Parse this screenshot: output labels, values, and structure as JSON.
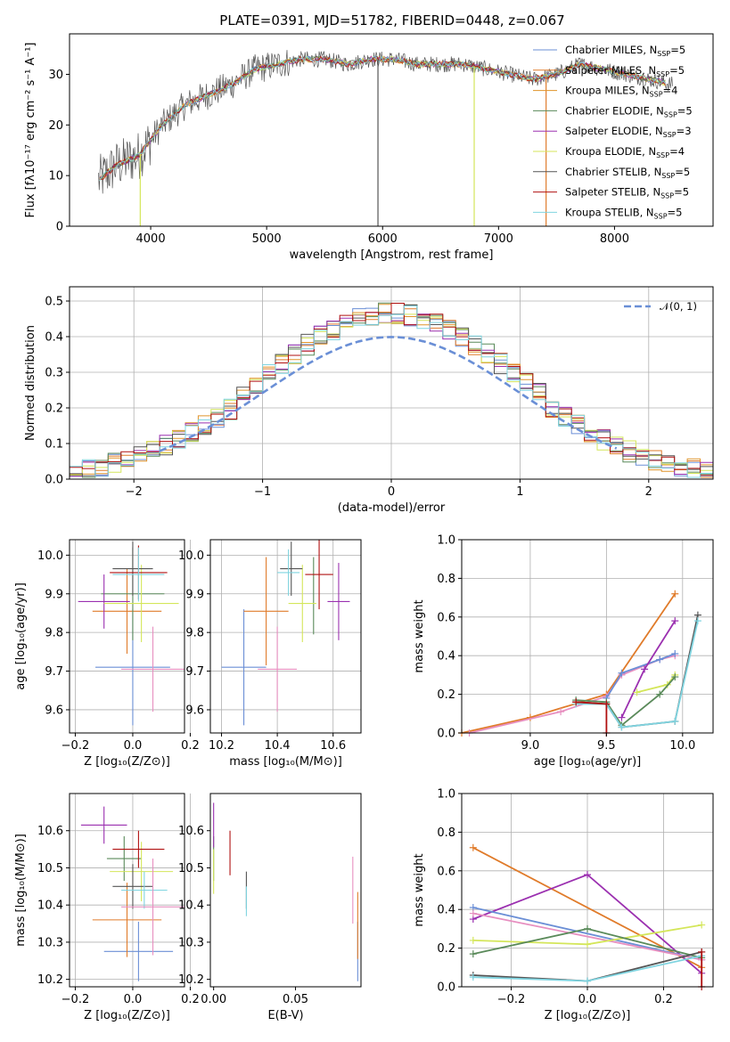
{
  "title": "PLATE=0391, MJD=51782, FIBERID=0448, z=0.067",
  "chart_data": [
    {
      "panel": "spectrum",
      "type": "line",
      "xlabel": "wavelength [Angstrom, rest frame]",
      "ylabel": "Flux [fλ10⁻¹⁷ erg cm⁻² s⁻¹ A⁻¹]",
      "xlim": [
        3300,
        8850
      ],
      "ylim": [
        0,
        38
      ],
      "xticks": [
        "4000",
        "5000",
        "6000",
        "7000",
        "8000"
      ],
      "yticks": [
        "0",
        "10",
        "20",
        "30"
      ],
      "legend_position": "top-right",
      "series": [
        {
          "name": "Chabrier MILES, N",
          "sub": "SSP",
          "tail": "=5",
          "color": "#6b8fd6"
        },
        {
          "name": "Salpeter MILES, N",
          "sub": "SSP",
          "tail": "=5",
          "color": "#e07b2a"
        },
        {
          "name": "Kroupa MILES, N",
          "sub": "SSP",
          "tail": "=4",
          "color": "#e0932a"
        },
        {
          "name": "Chabrier ELODIE, N",
          "sub": "SSP",
          "tail": "=5",
          "color": "#5a8a5a"
        },
        {
          "name": "Salpeter ELODIE, N",
          "sub": "SSP",
          "tail": "=3",
          "color": "#9b30b0"
        },
        {
          "name": "Kroupa ELODIE, N",
          "sub": "SSP",
          "tail": "=4",
          "color": "#d4e65a"
        },
        {
          "name": "Chabrier STELIB, N",
          "sub": "SSP",
          "tail": "=5",
          "color": "#555555"
        },
        {
          "name": "Salpeter STELIB, N",
          "sub": "SSP",
          "tail": "=5",
          "color": "#b01010"
        },
        {
          "name": "Kroupa STELIB, N",
          "sub": "SSP",
          "tail": "=5",
          "color": "#7fd4e0"
        }
      ],
      "continuum": {
        "x": [
          3550,
          3700,
          3900,
          4000,
          4100,
          4300,
          4500,
          4700,
          4900,
          5100,
          5300,
          5500,
          5700,
          5900,
          6100,
          6300,
          6500,
          6700,
          6900,
          7100,
          7300,
          7500,
          7700,
          7900,
          8100,
          8300,
          8500
        ],
        "y": [
          9,
          12,
          14,
          17,
          20,
          24,
          26,
          28,
          31,
          32,
          33,
          33,
          32,
          33,
          33,
          32,
          32,
          32,
          31,
          30,
          29,
          30,
          32,
          31,
          30,
          29,
          28
        ]
      }
    },
    {
      "panel": "residual_histogram",
      "type": "line",
      "xlabel": "(data-model)/error",
      "ylabel": "Normed distribution",
      "xlim": [
        -2.5,
        2.5
      ],
      "ylim": [
        0,
        0.54
      ],
      "xticks": [
        "−2",
        "−1",
        "0",
        "1",
        "2"
      ],
      "yticks": [
        "0.0",
        "0.1",
        "0.2",
        "0.3",
        "0.4",
        "0.5"
      ],
      "grid": true,
      "legend": "𝒩(0, 1)",
      "legend_position": "top-right",
      "gauss_color": "#6a8fd6"
    },
    {
      "panel": "age_vs_Z",
      "type": "scatter",
      "xlabel": "Z [log₁₀(Z/Z⊙)]",
      "ylabel": "age  [log₁₀(age/yr)]",
      "xlim": [
        -0.22,
        0.18
      ],
      "ylim": [
        9.54,
        10.04
      ],
      "xticks": [
        "−0.2",
        "0.0",
        "0.2"
      ],
      "yticks": [
        "9.6",
        "9.7",
        "9.8",
        "9.9",
        "10.0"
      ],
      "grid": true,
      "points": [
        {
          "x": 0.0,
          "xerr": 0.13,
          "y": 9.71,
          "yerr": 0.15,
          "color": "#6b8fd6"
        },
        {
          "x": -0.02,
          "xerr": 0.12,
          "y": 9.855,
          "yerr": 0.11,
          "color": "#e07b2a"
        },
        {
          "x": 0.0,
          "xerr": 0.11,
          "y": 9.9,
          "yerr": 0.12,
          "color": "#5a8a5a"
        },
        {
          "x": -0.1,
          "xerr": 0.09,
          "y": 9.88,
          "yerr": 0.07,
          "color": "#9b30b0"
        },
        {
          "x": 0.03,
          "xerr": 0.13,
          "y": 9.875,
          "yerr": 0.1,
          "color": "#d4e65a"
        },
        {
          "x": 0.0,
          "xerr": 0.07,
          "y": 9.965,
          "yerr": 0.07,
          "color": "#555555"
        },
        {
          "x": 0.02,
          "xerr": 0.1,
          "y": 9.955,
          "yerr": 0.07,
          "color": "#b01010"
        },
        {
          "x": 0.02,
          "xerr": 0.09,
          "y": 9.95,
          "yerr": 0.07,
          "color": "#7fd4e0"
        },
        {
          "x": 0.07,
          "xerr": 0.11,
          "y": 9.705,
          "yerr": 0.11,
          "color": "#e78fc0"
        }
      ]
    },
    {
      "panel": "age_vs_mass",
      "type": "scatter",
      "xlabel": "mass [log₁₀(M/M⊙)]",
      "xlim": [
        10.16,
        10.7
      ],
      "ylim": [
        9.54,
        10.04
      ],
      "xticks": [
        "10.2",
        "10.4",
        "10.6"
      ],
      "yticks": [
        "9.6",
        "9.7",
        "9.8",
        "9.9",
        "10.0"
      ],
      "grid": true,
      "points": [
        {
          "x": 10.28,
          "xerr": 0.08,
          "y": 9.71,
          "yerr": 0.15,
          "color": "#6b8fd6"
        },
        {
          "x": 10.36,
          "xerr": 0.08,
          "y": 9.855,
          "yerr": 0.14,
          "color": "#e07b2a"
        },
        {
          "x": 10.53,
          "xerr": 0.0,
          "y": 9.895,
          "yerr": 0.1,
          "color": "#5a8a5a"
        },
        {
          "x": 10.62,
          "xerr": 0.04,
          "y": 9.88,
          "yerr": 0.1,
          "color": "#9b30b0"
        },
        {
          "x": 10.49,
          "xerr": 0.05,
          "y": 9.875,
          "yerr": 0.1,
          "color": "#d4e65a"
        },
        {
          "x": 10.45,
          "xerr": 0.04,
          "y": 9.965,
          "yerr": 0.07,
          "color": "#555555"
        },
        {
          "x": 10.55,
          "xerr": 0.05,
          "y": 9.95,
          "yerr": 0.09,
          "color": "#b01010"
        },
        {
          "x": 10.44,
          "xerr": 0.04,
          "y": 9.955,
          "yerr": 0.06,
          "color": "#7fd4e0"
        },
        {
          "x": 10.4,
          "xerr": 0.07,
          "y": 9.705,
          "yerr": 0.11,
          "color": "#e78fc0"
        }
      ]
    },
    {
      "panel": "mass_weight_vs_age",
      "type": "line",
      "xlabel": "age  [log₁₀(age/yr)]",
      "ylabel": "mass weight",
      "xlim": [
        8.55,
        10.2
      ],
      "ylim": [
        0,
        1
      ],
      "xticks": [
        "9.0",
        "9.5",
        "10.0"
      ],
      "yticks": [
        "0.0",
        "0.2",
        "0.4",
        "0.6",
        "0.8",
        "1.0"
      ],
      "grid": true,
      "series": [
        {
          "color": "#e07b2a",
          "x": [
            8.55,
            9.0,
            9.5,
            9.95
          ],
          "y": [
            0.0,
            0.08,
            0.2,
            0.72
          ]
        },
        {
          "color": "#e78fc0",
          "x": [
            8.6,
            9.2,
            9.5,
            9.6,
            9.85,
            9.95
          ],
          "y": [
            0.0,
            0.11,
            0.19,
            0.3,
            0.38,
            0.4
          ]
        },
        {
          "color": "#6b8fd6",
          "x": [
            9.5,
            9.6,
            9.85,
            9.95
          ],
          "y": [
            0.18,
            0.31,
            0.38,
            0.41
          ]
        },
        {
          "color": "#9b30b0",
          "x": [
            9.6,
            9.75,
            9.95
          ],
          "y": [
            0.08,
            0.33,
            0.58
          ]
        },
        {
          "color": "#d4e65a",
          "x": [
            9.7,
            9.9,
            9.95
          ],
          "y": [
            0.21,
            0.25,
            0.3
          ]
        },
        {
          "color": "#5a8a5a",
          "x": [
            9.3,
            9.5,
            9.6,
            9.85,
            9.95
          ],
          "y": [
            0.17,
            0.16,
            0.04,
            0.2,
            0.29
          ]
        },
        {
          "color": "#555555",
          "x": [
            9.3,
            9.5,
            9.6,
            9.95,
            10.1
          ],
          "y": [
            0.16,
            0.15,
            0.03,
            0.06,
            0.61
          ]
        },
        {
          "color": "#7fd4e0",
          "x": [
            9.3,
            9.5,
            9.6,
            9.95,
            10.1
          ],
          "y": [
            0.15,
            0.15,
            0.03,
            0.06,
            0.58
          ]
        },
        {
          "color": "#b01010",
          "x": [
            9.3,
            9.5,
            9.5
          ],
          "y": [
            0.16,
            0.15,
            0.0
          ]
        }
      ]
    },
    {
      "panel": "mass_vs_Z",
      "type": "scatter",
      "xlabel": "Z [log₁₀(Z/Z⊙)]",
      "ylabel": "mass [log₁₀(M/M⊙)]",
      "xlim": [
        -0.22,
        0.18
      ],
      "ylim": [
        10.18,
        10.7
      ],
      "xticks": [
        "−0.2",
        "0.0",
        "0.2"
      ],
      "yticks": [
        "10.2",
        "10.3",
        "10.4",
        "10.5",
        "10.6"
      ],
      "grid": true,
      "points": [
        {
          "x": 0.02,
          "xerr": 0.12,
          "y": 10.275,
          "yerr": 0.08,
          "color": "#6b8fd6"
        },
        {
          "x": -0.02,
          "xerr": 0.12,
          "y": 10.36,
          "yerr": 0.1,
          "color": "#e07b2a"
        },
        {
          "x": -0.03,
          "xerr": 0.06,
          "y": 10.525,
          "yerr": 0.06,
          "color": "#5a8a5a"
        },
        {
          "x": -0.1,
          "xerr": 0.08,
          "y": 10.615,
          "yerr": 0.05,
          "color": "#9b30b0"
        },
        {
          "x": 0.03,
          "xerr": 0.11,
          "y": 10.49,
          "yerr": 0.08,
          "color": "#d4e65a"
        },
        {
          "x": 0.0,
          "xerr": 0.07,
          "y": 10.45,
          "yerr": 0.06,
          "color": "#555555"
        },
        {
          "x": 0.02,
          "xerr": 0.09,
          "y": 10.55,
          "yerr": 0.05,
          "color": "#b01010"
        },
        {
          "x": 0.04,
          "xerr": 0.08,
          "y": 10.44,
          "yerr": 0.05,
          "color": "#7fd4e0"
        },
        {
          "x": 0.07,
          "xerr": 0.11,
          "y": 10.395,
          "yerr": 0.13,
          "color": "#e78fc0"
        }
      ]
    },
    {
      "panel": "mass_vs_EBV",
      "type": "scatter",
      "xlabel": "E(B-V)",
      "xlim": [
        -0.002,
        0.09
      ],
      "ylim": [
        10.18,
        10.7
      ],
      "xticks": [
        "0.00",
        "0.05"
      ],
      "yticks": [
        "10.2",
        "10.3",
        "10.4",
        "10.5",
        "10.6"
      ],
      "points": [
        {
          "x": 0.088,
          "y": 10.275,
          "yerr": 0.08,
          "color": "#6b8fd6"
        },
        {
          "x": 0.088,
          "y": 10.345,
          "yerr": 0.09,
          "color": "#e07b2a"
        },
        {
          "x": 0.0,
          "y": 10.525,
          "yerr": 0.06,
          "color": "#5a8a5a"
        },
        {
          "x": 0.0,
          "y": 10.615,
          "yerr": 0.06,
          "color": "#9b30b0"
        },
        {
          "x": 0.0,
          "y": 10.49,
          "yerr": 0.06,
          "color": "#d4e65a"
        },
        {
          "x": 0.02,
          "y": 10.44,
          "yerr": 0.05,
          "color": "#555555"
        },
        {
          "x": 0.01,
          "y": 10.54,
          "yerr": 0.06,
          "color": "#b01010"
        },
        {
          "x": 0.02,
          "y": 10.41,
          "yerr": 0.04,
          "color": "#7fd4e0"
        },
        {
          "x": 0.085,
          "y": 10.44,
          "yerr": 0.09,
          "color": "#e78fc0"
        }
      ]
    },
    {
      "panel": "mass_weight_vs_Z",
      "type": "line",
      "xlabel": "Z [log₁₀(Z/Z⊙)]",
      "ylabel": "mass weight",
      "xlim": [
        -0.33,
        0.33
      ],
      "ylim": [
        0,
        1
      ],
      "xticks": [
        "−0.2",
        "0.0",
        "0.2"
      ],
      "yticks": [
        "0.0",
        "0.2",
        "0.4",
        "0.6",
        "0.8",
        "1.0"
      ],
      "grid": true,
      "series": [
        {
          "color": "#e07b2a",
          "x": [
            -0.3,
            0.3
          ],
          "y": [
            0.72,
            0.1
          ]
        },
        {
          "color": "#9b30b0",
          "x": [
            -0.3,
            0.0,
            0.3
          ],
          "y": [
            0.35,
            0.58,
            0.07
          ]
        },
        {
          "color": "#6b8fd6",
          "x": [
            -0.3,
            0.3
          ],
          "y": [
            0.41,
            0.14
          ]
        },
        {
          "color": "#e78fc0",
          "x": [
            -0.3,
            0.3
          ],
          "y": [
            0.38,
            0.14
          ]
        },
        {
          "color": "#d4e65a",
          "x": [
            -0.3,
            0.0,
            0.3
          ],
          "y": [
            0.24,
            0.22,
            0.32
          ]
        },
        {
          "color": "#5a8a5a",
          "x": [
            -0.3,
            0.0,
            0.3
          ],
          "y": [
            0.17,
            0.3,
            0.15
          ]
        },
        {
          "color": "#555555",
          "x": [
            -0.3,
            0.0,
            0.3
          ],
          "y": [
            0.06,
            0.03,
            0.18
          ]
        },
        {
          "color": "#7fd4e0",
          "x": [
            -0.3,
            0.0,
            0.3
          ],
          "y": [
            0.05,
            0.03,
            0.16
          ]
        },
        {
          "color": "#b01010",
          "x": [
            0.3,
            0.3
          ],
          "y": [
            0.18,
            0.0
          ]
        }
      ]
    }
  ]
}
